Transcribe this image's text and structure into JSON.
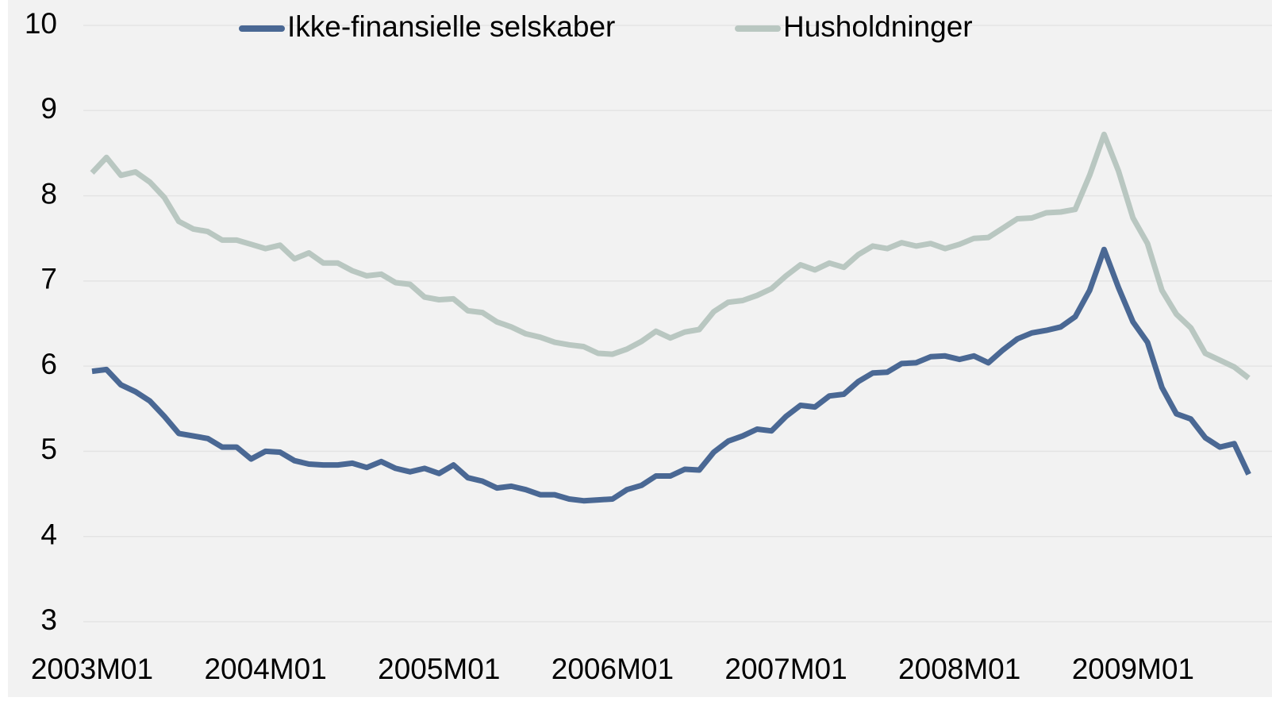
{
  "chart_data": {
    "type": "line",
    "categories": [
      "2003M01",
      null,
      null,
      null,
      null,
      null,
      null,
      null,
      null,
      null,
      null,
      null,
      "2004M01",
      null,
      null,
      null,
      null,
      null,
      null,
      null,
      null,
      null,
      null,
      null,
      "2005M01",
      null,
      null,
      null,
      null,
      null,
      null,
      null,
      null,
      null,
      null,
      null,
      "2006M01",
      null,
      null,
      null,
      null,
      null,
      null,
      null,
      null,
      null,
      null,
      null,
      "2007M01",
      null,
      null,
      null,
      null,
      null,
      null,
      null,
      null,
      null,
      null,
      null,
      "2008M01",
      null,
      null,
      null,
      null,
      null,
      null,
      null,
      null,
      null,
      null,
      null,
      "2009M01",
      null,
      null,
      null,
      null,
      null,
      null,
      null,
      null
    ],
    "series": [
      {
        "name": "Ikke-finansielle selskaber",
        "color": "#4a6894",
        "values": [
          5.94,
          5.96,
          5.78,
          5.7,
          5.59,
          5.41,
          5.21,
          5.18,
          5.15,
          5.05,
          5.05,
          4.91,
          5.0,
          4.99,
          4.89,
          4.85,
          4.84,
          4.84,
          4.86,
          4.81,
          4.88,
          4.8,
          4.76,
          4.8,
          4.74,
          4.84,
          4.69,
          4.65,
          4.57,
          4.59,
          4.55,
          4.49,
          4.49,
          4.44,
          4.42,
          4.43,
          4.44,
          4.55,
          4.6,
          4.71,
          4.71,
          4.79,
          4.78,
          4.99,
          5.12,
          5.18,
          5.26,
          5.24,
          5.41,
          5.54,
          5.52,
          5.65,
          5.67,
          5.82,
          5.92,
          5.93,
          6.03,
          6.04,
          6.11,
          6.12,
          6.08,
          6.12,
          6.04,
          6.19,
          6.32,
          6.39,
          6.42,
          6.46,
          6.58,
          6.89,
          7.37,
          6.92,
          6.52,
          6.28,
          5.75,
          5.44,
          5.38,
          5.16,
          5.05,
          5.09,
          4.73
        ]
      },
      {
        "name": "Husholdninger",
        "color": "#b9c7c1",
        "values": [
          8.27,
          8.45,
          8.24,
          8.28,
          8.16,
          7.98,
          7.7,
          7.61,
          7.58,
          7.48,
          7.48,
          7.43,
          7.38,
          7.42,
          7.26,
          7.33,
          7.21,
          7.21,
          7.12,
          7.06,
          7.08,
          6.98,
          6.96,
          6.81,
          6.78,
          6.79,
          6.65,
          6.63,
          6.52,
          6.46,
          6.38,
          6.34,
          6.28,
          6.25,
          6.23,
          6.15,
          6.14,
          6.2,
          6.29,
          6.41,
          6.33,
          6.4,
          6.43,
          6.64,
          6.75,
          6.77,
          6.83,
          6.91,
          7.06,
          7.19,
          7.13,
          7.21,
          7.16,
          7.31,
          7.41,
          7.38,
          7.45,
          7.41,
          7.44,
          7.38,
          7.43,
          7.5,
          7.51,
          7.62,
          7.73,
          7.74,
          7.8,
          7.81,
          7.84,
          8.24,
          8.72,
          8.29,
          7.74,
          7.44,
          6.89,
          6.61,
          6.45,
          6.15,
          6.07,
          5.99,
          5.86
        ]
      }
    ],
    "ylim": [
      3,
      10
    ],
    "yticks": [
      3,
      4,
      5,
      6,
      7,
      8,
      9,
      10
    ],
    "grid": true,
    "legend": "top"
  }
}
